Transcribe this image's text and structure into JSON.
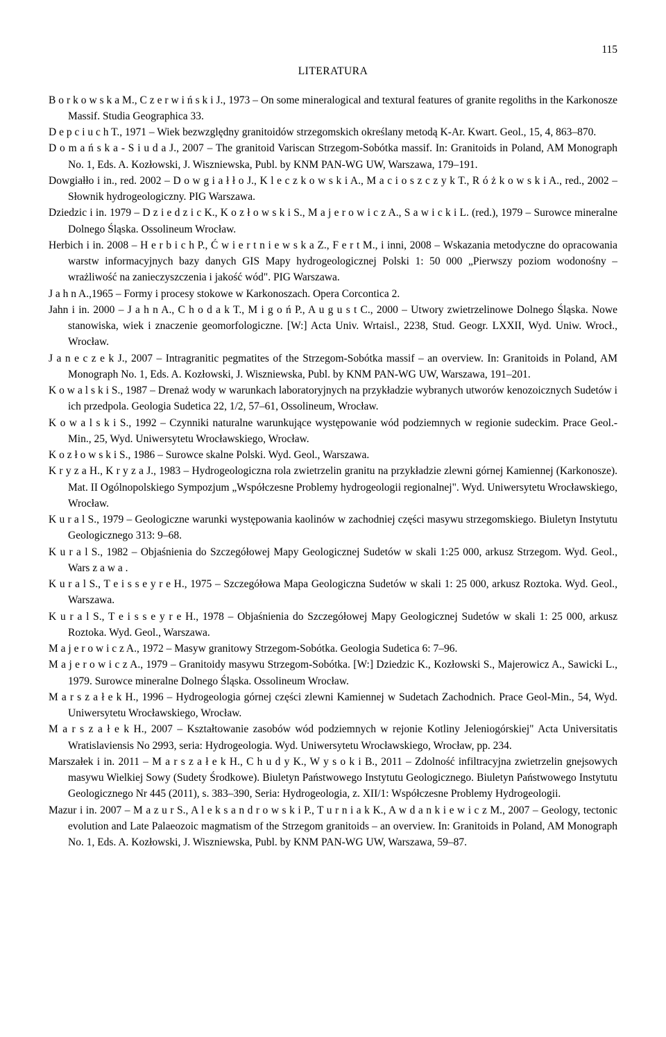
{
  "page_number": "115",
  "heading": "LITERATURA",
  "refs": [
    "B o r k o w s k a  M., C z e r w i ń s k i  J., 1973 – On some mineralogical and textural features of granite regoliths in the Karkonosze Massif. Studia Geographica 33.",
    "D e p c i u c h  T., 1971 – Wiek bezwzględny granitoidów strzegomskich określany metodą K-Ar. Kwart. Geol., 15, 4, 863–870.",
    "D o m a ń s k a - S i u d a  J., 2007 – The granitoid Variscan Strzegom-Sobótka massif. In: Granitoids in Poland, AM Monograph No. 1, Eds. A. Kozłowski, J. Wiszniewska, Publ. by KNM PAN-WG UW, Warszawa, 179–191.",
    "Dowgiałło i in., red. 2002 – D o w g i a ł ł o  J., K l e c z k o w s k i  A., M a c i o s z c z y k  T., R ó ż k o w s k i  A., red., 2002 – Słownik hydrogeologiczny. PIG Warszawa.",
    "Dziedzic i in. 1979 – D z i e d z i c  K., K o z ł o w s k i  S., M a j e r o w i c z  A., S a w i c k i  L. (red.), 1979 – Surowce mineralne Dolnego Śląska. Ossolineum Wrocław.",
    "Herbich i in. 2008 – H e r b i c h  P., Ć w i e r t n i e w s k a  Z., F e r t  M., i inni, 2008 – Wskazania metodyczne do opracowania warstw informacyjnych bazy danych GIS Mapy hydrogeologicznej Polski 1: 50 000 „Pierwszy poziom wodonośny – wrażliwość na zanieczyszczenia i jakość wód\". PIG Warszawa.",
    "J a h n  A.,1965 – Formy i procesy stokowe w Karkonoszach. Opera Corcontica 2.",
    "Jahn i in. 2000 – J a h n  A., C h o d a k  T., M i g o ń  P., A u g u s t  C., 2000 – Utwory zwietrzelinowe Dolnego Śląska. Nowe stanowiska, wiek i znaczenie geomorfologiczne. [W:] Acta Univ. Wrtaisl., 2238, Stud. Geogr. LXXII, Wyd. Uniw. Wrocł., Wrocław.",
    "J a n e c z e k  J., 2007 – Intragranitic pegmatites of the Strzegom-Sobótka massif – an overview. In: Granitoids in Poland, AM Monograph No. 1, Eds. A. Kozłowski, J. Wiszniewska, Publ. by KNM PAN-WG UW, Warszawa, 191–201.",
    "K o w a l s k i  S., 1987 – Drenaż wody w warunkach laboratoryjnych na przykładzie wybranych utworów kenozoicznych Sudetów i ich przedpola. Geologia Sudetica 22, 1/2, 57–61, Ossolineum, Wrocław.",
    "K o w a l s k i  S., 1992 – Czynniki naturalne warunkujące występowanie wód podziemnych w regionie sudeckim. Prace Geol.-Min., 25, Wyd. Uniwersytetu Wrocławskiego, Wrocław.",
    "K o z ł o w s k i  S., 1986 – Surowce skalne Polski. Wyd. Geol., Warszawa.",
    "K r y z a  H., K r y z a  J., 1983 – Hydrogeologiczna rola zwietrzelin granitu na przykładzie zlewni górnej Kamiennej (Karkonosze). Mat. II Ogólnopolskiego Sympozjum „Współczesne Problemy hydrogeologii regionalnej\". Wyd. Uniwersytetu Wrocławskiego, Wrocław.",
    "K u r a l  S., 1979 – Geologiczne warunki występowania kaolinów w zachodniej części masywu strzegomskiego. Biuletyn Instytutu Geologicznego 313: 9–68.",
    "K u r a l  S., 1982 – Objaśnienia do Szczegółowej Mapy Geologicznej Sudetów w skali 1:25 000, arkusz Strzegom. Wyd. Geol., Wars z a w a .",
    "K u r a l  S., T e i s s e y r e  H., 1975 – Szczegółowa Mapa Geologiczna Sudetów w skali 1: 25 000, arkusz Roztoka. Wyd. Geol., Warszawa.",
    "K u r a l  S., T e i s s e y r e  H., 1978 – Objaśnienia do Szczegółowej Mapy Geologicznej Sudetów w skali 1: 25 000, arkusz Roztoka. Wyd. Geol., Warszawa.",
    "M a j e r o w i c z  A., 1972 – Masyw granitowy Strzegom-Sobótka. Geologia Sudetica 6: 7–96.",
    "M a j e r o w i c z  A., 1979 – Granitoidy masywu Strzegom-Sobótka. [W:] Dziedzic K., Kozłowski S., Majerowicz A., Sawicki L., 1979. Surowce mineralne Dolnego Śląska. Ossolineum Wrocław.",
    "M a r s z a ł e k  H., 1996 – Hydrogeologia górnej części zlewni Kamiennej w Sudetach Zachodnich. Prace Geol-Min., 54, Wyd. Uniwersytetu Wrocławskiego, Wrocław.",
    "M a r s z a ł e k  H., 2007 – Kształtowanie zasobów wód podziemnych w rejonie Kotliny Jeleniogórskiej\" Acta Universitatis Wratislaviensis No 2993, seria: Hydrogeologia. Wyd. Uniwersytetu Wrocławskiego, Wrocław, pp. 234.",
    "Marszałek i in. 2011 – M a r s z a ł e k  H., C h u d y  K., W y s o k i  B., 2011 – Zdolność infiltracyjna zwietrzelin gnejsowych masywu Wielkiej Sowy (Sudety Środkowe). Biuletyn Państwowego Instytutu Geologicznego. Biuletyn Państwowego Instytutu Geologicznego Nr 445 (2011), s. 383–390, Seria: Hydrogeologia, z. XII/1: Współczesne Problemy Hydrogeologii.",
    "Mazur i in. 2007 – M a z u r  S., A l e k s a n d r o w s k i  P., T u r n i a k  K., A w d a n k i e w i c z  M., 2007 – Geology, tectonic evolution and Late Palaeozoic magmatism of the Strzegom granitoids – an overview. In: Granitoids in Poland, AM Monograph No. 1, Eds. A. Kozłowski, J. Wiszniewska, Publ. by KNM PAN-WG UW, Warszawa, 59–87."
  ]
}
